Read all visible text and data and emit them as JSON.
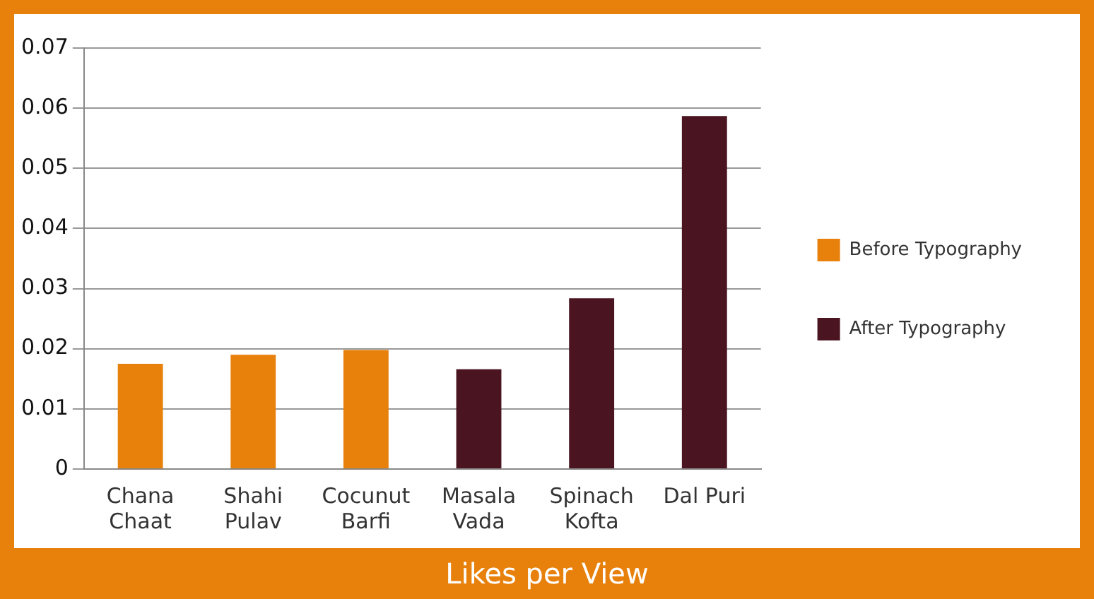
{
  "chart_data": {
    "type": "bar",
    "title": "Likes per View",
    "categories": [
      "Chana Chaat",
      "Shahi Pulav",
      "Cocunut Barfi",
      "Masala Vada",
      "Spinach Kofta",
      "Dal Puri"
    ],
    "series": [
      {
        "name": "Before Typography",
        "color": "#e8800c",
        "values": [
          0.0175,
          0.019,
          0.0198,
          null,
          null,
          null
        ]
      },
      {
        "name": "After Typography",
        "color": "#4a1520",
        "values": [
          null,
          null,
          null,
          0.0166,
          0.0284,
          0.0587
        ]
      }
    ],
    "ylim": [
      0,
      0.07
    ],
    "yticks": [
      0,
      0.01,
      0.02,
      0.03,
      0.04,
      0.05,
      0.06,
      0.07
    ],
    "grid": "y",
    "legend": "right"
  }
}
